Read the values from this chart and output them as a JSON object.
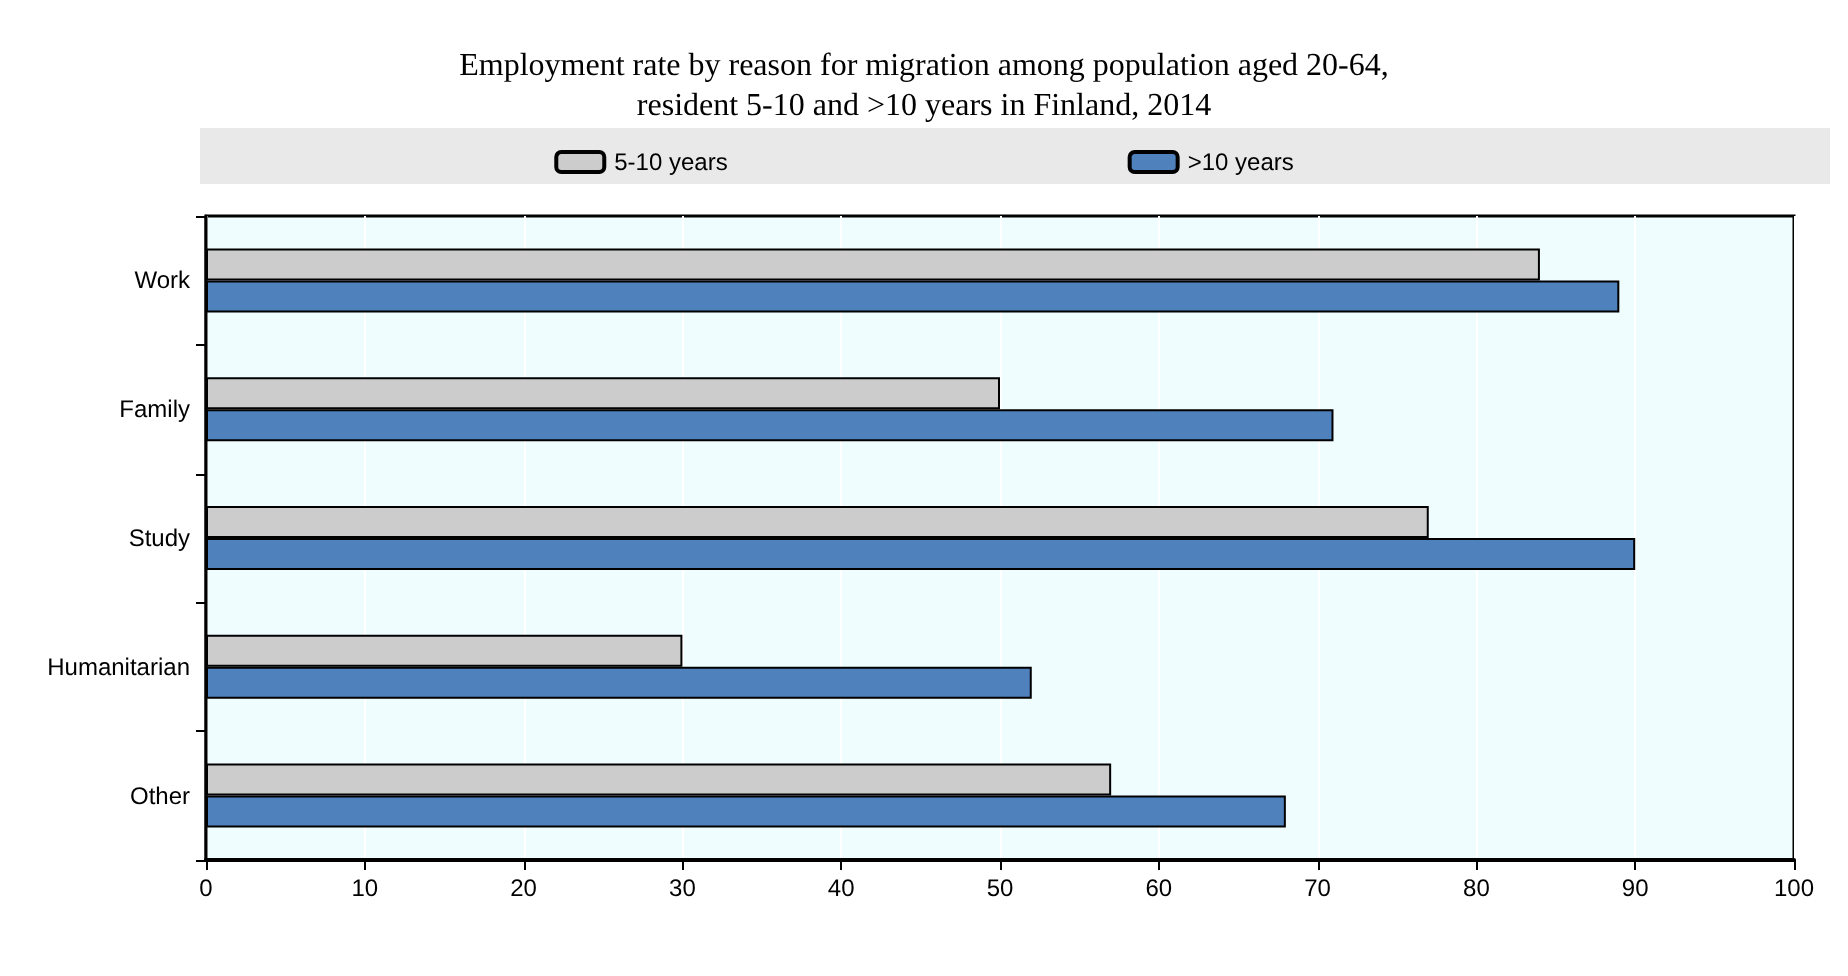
{
  "chart_data": {
    "type": "bar",
    "orientation": "horizontal",
    "title": "Employment rate by reason for migration among population aged 20-64,\nresident 5-10 and >10 years in Finland, 2014",
    "categories": [
      "Work",
      "Family",
      "Study",
      "Humanitarian",
      "Other"
    ],
    "series": [
      {
        "name": "5-10 years",
        "color": "#cccccc",
        "values": [
          84,
          50,
          77,
          30,
          57
        ]
      },
      {
        "name": ">10 years",
        "color": "#4f81bd",
        "values": [
          89,
          71,
          90,
          52,
          68
        ]
      }
    ],
    "xlim": [
      0,
      100
    ],
    "xticks": [
      0,
      10,
      20,
      30,
      40,
      50,
      60,
      70,
      80,
      90,
      100
    ],
    "grid": "x",
    "legend": "top"
  }
}
